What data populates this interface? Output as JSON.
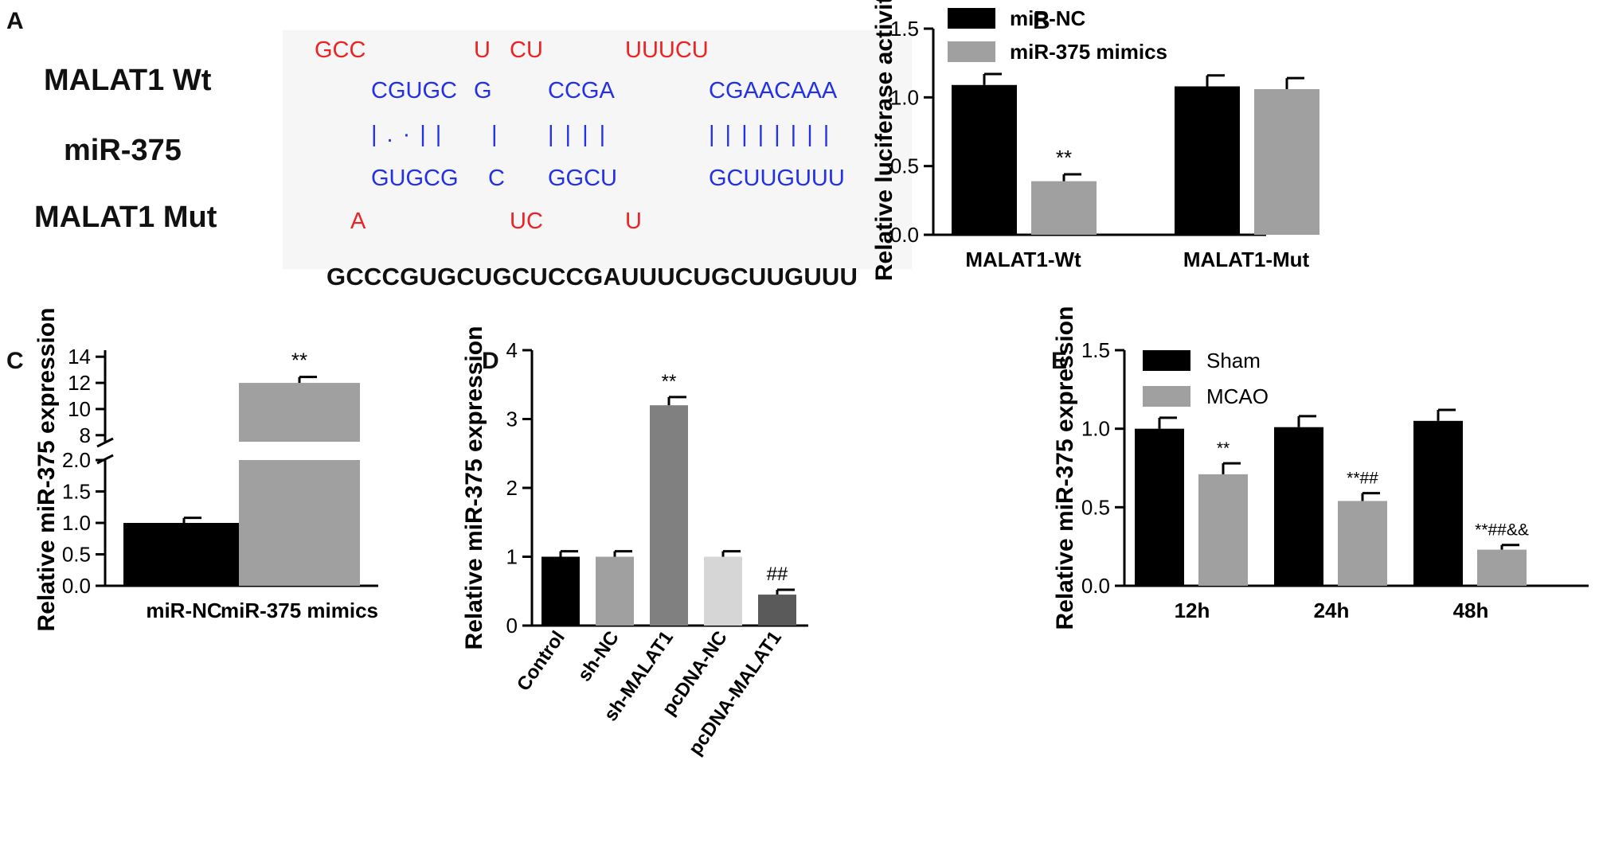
{
  "panelA": {
    "letter": "A",
    "label_wt": "MALAT1  Wt",
    "label_mir": "miR-375",
    "label_mut": "MALAT1  Mut",
    "row_top_red": [
      "GCC",
      "U",
      "CU",
      "UUUCU"
    ],
    "row_wt_blue": [
      "CGUGC",
      "G",
      "CCGA",
      "CGAACAAA"
    ],
    "row_pairs": [
      "|.·||",
      "|",
      "||||",
      "||||||||"
    ],
    "row_mir_blue": [
      "GUGCG",
      "C",
      "GGCU",
      "GCUUGUUU"
    ],
    "row_bottom_red": [
      "A",
      "UC",
      "U"
    ],
    "mut_sequence": "GCCCGUGCUGCUCCGAUUUCUGCUUGUUU"
  },
  "panels": {
    "B": "B",
    "C": "C",
    "D": "D",
    "E": "E"
  },
  "chart_data": [
    {
      "panel": "B",
      "type": "bar",
      "ylabel": "Relative luciferase activity",
      "ylim": [
        0,
        1.5
      ],
      "yticks": [
        "0.0",
        "0.5",
        "1.0",
        "1.5"
      ],
      "categories": [
        "MALAT1-Wt",
        "MALAT1-Mut"
      ],
      "legend_placement": "top-left",
      "series": [
        {
          "name": "miR-NC",
          "color": "#000000",
          "values": [
            1.09,
            1.08
          ],
          "errors": [
            0.08,
            0.08
          ]
        },
        {
          "name": "miR-375 mimics",
          "color": "#a0a0a0",
          "values": [
            0.39,
            1.06
          ],
          "errors": [
            0.05,
            0.08
          ]
        }
      ],
      "annotations": [
        {
          "category": "MALAT1-Wt",
          "series": "miR-375 mimics",
          "text": "**"
        }
      ]
    },
    {
      "panel": "C",
      "type": "bar",
      "ylabel": "Relative miR-375 expression",
      "axis_break": true,
      "lower_ylim": [
        0,
        2.0
      ],
      "lower_yticks": [
        "0.0",
        "0.5",
        "1.0",
        "1.5",
        "2.0"
      ],
      "upper_ylim": [
        7.5,
        14.5
      ],
      "upper_yticks": [
        "8",
        "10",
        "12",
        "14"
      ],
      "categories": [
        "miR-NC",
        "miR-375 mimics"
      ],
      "colors": [
        "#000000",
        "#a0a0a0"
      ],
      "values": [
        1.0,
        12.0
      ],
      "errors": [
        0.08,
        0.45
      ],
      "annotations": [
        {
          "category": "miR-375 mimics",
          "text": "**"
        }
      ]
    },
    {
      "panel": "D",
      "type": "bar",
      "ylabel": "Relative miR-375 expression",
      "ylim": [
        0,
        4
      ],
      "yticks": [
        "0",
        "1",
        "2",
        "3",
        "4"
      ],
      "categories": [
        "Control",
        "sh-NC",
        "sh-MALAT1",
        "pcDNA-NC",
        "pcDNA-MALAT1"
      ],
      "colors": [
        "#000000",
        "#a0a0a0",
        "#808080",
        "#d6d6d6",
        "#5a5a5a"
      ],
      "values": [
        1.0,
        1.0,
        3.2,
        1.0,
        0.45
      ],
      "errors": [
        0.08,
        0.08,
        0.12,
        0.08,
        0.07
      ],
      "annotations": [
        {
          "category": "sh-MALAT1",
          "text": "**"
        },
        {
          "category": "pcDNA-MALAT1",
          "text": "##"
        }
      ]
    },
    {
      "panel": "E",
      "type": "bar",
      "ylabel": "Relative miR-375 expression",
      "ylim": [
        0,
        1.5
      ],
      "yticks": [
        "0.0",
        "0.5",
        "1.0",
        "1.5"
      ],
      "categories": [
        "12h",
        "24h",
        "48h"
      ],
      "legend_placement": "top-left",
      "series": [
        {
          "name": "Sham",
          "color": "#000000",
          "values": [
            1.0,
            1.01,
            1.05
          ],
          "errors": [
            0.07,
            0.07,
            0.07
          ]
        },
        {
          "name": "MCAO",
          "color": "#a0a0a0",
          "values": [
            0.71,
            0.54,
            0.23
          ],
          "errors": [
            0.07,
            0.05,
            0.03
          ]
        }
      ],
      "annotations": [
        {
          "category": "12h",
          "series": "MCAO",
          "text": "**"
        },
        {
          "category": "24h",
          "series": "MCAO",
          "text": "**##"
        },
        {
          "category": "48h",
          "series": "MCAO",
          "text": "**##&&"
        }
      ]
    }
  ]
}
